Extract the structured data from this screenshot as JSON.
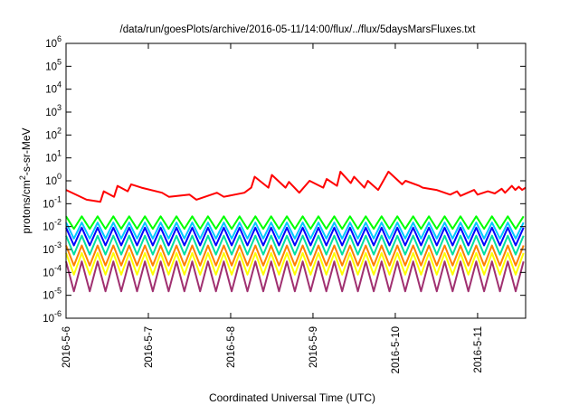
{
  "chart_data": {
    "type": "line",
    "title": "/data/run/goesPlots/archive/2016-05-11/14:00/flux/../flux/5daysMarsFluxes.txt",
    "xlabel": "Coordinated Universal Time (UTC)",
    "ylabel": "protons/cm²-s-sr-MeV",
    "yscale": "log",
    "ylim": [
      1e-06,
      1000000.0
    ],
    "xlim": [
      "2016-05-06",
      "2016-05-11 14:00"
    ],
    "x_ticks": [
      "2016-5-6",
      "2016-5-7",
      "2016-5-8",
      "2016-5-9",
      "2016-5-10",
      "2016-5-11"
    ],
    "y_ticks": [
      {
        "value": 1000000.0,
        "base": "10",
        "exp": "6"
      },
      {
        "value": 100000.0,
        "base": "10",
        "exp": "5"
      },
      {
        "value": 10000.0,
        "base": "10",
        "exp": "4"
      },
      {
        "value": 1000.0,
        "base": "10",
        "exp": "3"
      },
      {
        "value": 100.0,
        "base": "10",
        "exp": "2"
      },
      {
        "value": 10.0,
        "base": "10",
        "exp": "1"
      },
      {
        "value": 1.0,
        "base": "10",
        "exp": "0"
      },
      {
        "value": 0.1,
        "base": "10",
        "exp": "-1"
      },
      {
        "value": 0.01,
        "base": "10",
        "exp": "-2"
      },
      {
        "value": 0.001,
        "base": "10",
        "exp": "-3"
      },
      {
        "value": 0.0001,
        "base": "10",
        "exp": "-4"
      },
      {
        "value": 1e-05,
        "base": "10",
        "exp": "-5"
      },
      {
        "value": 1e-06,
        "base": "10",
        "exp": "-6"
      }
    ],
    "grid": false,
    "series": [
      {
        "color": "#ff0000",
        "shape": "irregular",
        "x": [
          "2016-05-06 00:00",
          "2016-05-06 06:00",
          "2016-05-06 10:00",
          "2016-05-06 11:00",
          "2016-05-06 14:00",
          "2016-05-06 15:00",
          "2016-05-06 18:00",
          "2016-05-06 19:00",
          "2016-05-06 22:00",
          "2016-05-07 04:00",
          "2016-05-07 06:00",
          "2016-05-07 12:00",
          "2016-05-07 14:00",
          "2016-05-07 20:00",
          "2016-05-07 22:00",
          "2016-05-08 04:00",
          "2016-05-08 06:00",
          "2016-05-08 07:00",
          "2016-05-08 11:00",
          "2016-05-08 12:00",
          "2016-05-08 16:00",
          "2016-05-08 17:00",
          "2016-05-08 20:00",
          "2016-05-08 23:00",
          "2016-05-09 03:00",
          "2016-05-09 04:00",
          "2016-05-09 07:00",
          "2016-05-09 08:00",
          "2016-05-09 11:00",
          "2016-05-09 12:00",
          "2016-05-09 15:00",
          "2016-05-09 16:00",
          "2016-05-09 19:00",
          "2016-05-09 22:00",
          "2016-05-10 02:00",
          "2016-05-10 03:00",
          "2016-05-10 07:00",
          "2016-05-10 08:00",
          "2016-05-10 12:00",
          "2016-05-10 16:00",
          "2016-05-10 18:00",
          "2016-05-10 19:00",
          "2016-05-10 23:00",
          "2016-05-11 00:00",
          "2016-05-11 03:00",
          "2016-05-11 05:00",
          "2016-05-11 07:00",
          "2016-05-11 08:00",
          "2016-05-11 10:00",
          "2016-05-11 11:00",
          "2016-05-11 12:00",
          "2016-05-11 13:00",
          "2016-05-11 14:00"
        ],
        "y": [
          0.4,
          0.15,
          0.12,
          0.35,
          0.2,
          0.6,
          0.35,
          0.7,
          0.5,
          0.3,
          0.2,
          0.25,
          0.15,
          0.3,
          0.2,
          0.3,
          0.5,
          1.5,
          0.5,
          1.8,
          0.5,
          0.9,
          0.3,
          1.0,
          0.5,
          1.2,
          0.6,
          2.5,
          0.8,
          1.5,
          0.5,
          1.0,
          0.4,
          2.5,
          0.7,
          1.0,
          0.6,
          0.5,
          0.4,
          0.25,
          0.35,
          0.22,
          0.4,
          0.25,
          0.35,
          0.28,
          0.45,
          0.3,
          0.6,
          0.4,
          0.55,
          0.4,
          0.5
        ]
      },
      {
        "color": "#00ff00",
        "shape": "sawtooth",
        "start": "2016-05-06 00:00",
        "step_hours": 2.3,
        "n": 147,
        "min": 0.008,
        "max": 0.028
      },
      {
        "color": "#00c8ff",
        "shape": "sawtooth",
        "start": "2016-05-06 00:00",
        "step_hours": 2.3,
        "n": 147,
        "min": 0.003,
        "max": 0.015
      },
      {
        "color": "#0000ff",
        "shape": "sawtooth",
        "start": "2016-05-06 00:00",
        "step_hours": 2.3,
        "n": 147,
        "min": 0.0015,
        "max": 0.009
      },
      {
        "color": "#00e0a0",
        "shape": "sawtooth",
        "start": "2016-05-06 00:00",
        "step_hours": 2.3,
        "n": 147,
        "min": 0.0006,
        "max": 0.004
      },
      {
        "color": "#ff8000",
        "shape": "sawtooth",
        "start": "2016-05-06 00:00",
        "step_hours": 2.3,
        "n": 147,
        "min": 0.0002,
        "max": 0.0015
      },
      {
        "color": "#ffff00",
        "shape": "sawtooth",
        "start": "2016-05-06 00:00",
        "step_hours": 2.3,
        "n": 147,
        "min": 8e-05,
        "max": 0.0007
      },
      {
        "color": "#a03070",
        "shape": "sawtooth",
        "start": "2016-05-06 00:00",
        "step_hours": 2.3,
        "n": 147,
        "min": 1.5e-05,
        "max": 0.0003
      }
    ]
  }
}
